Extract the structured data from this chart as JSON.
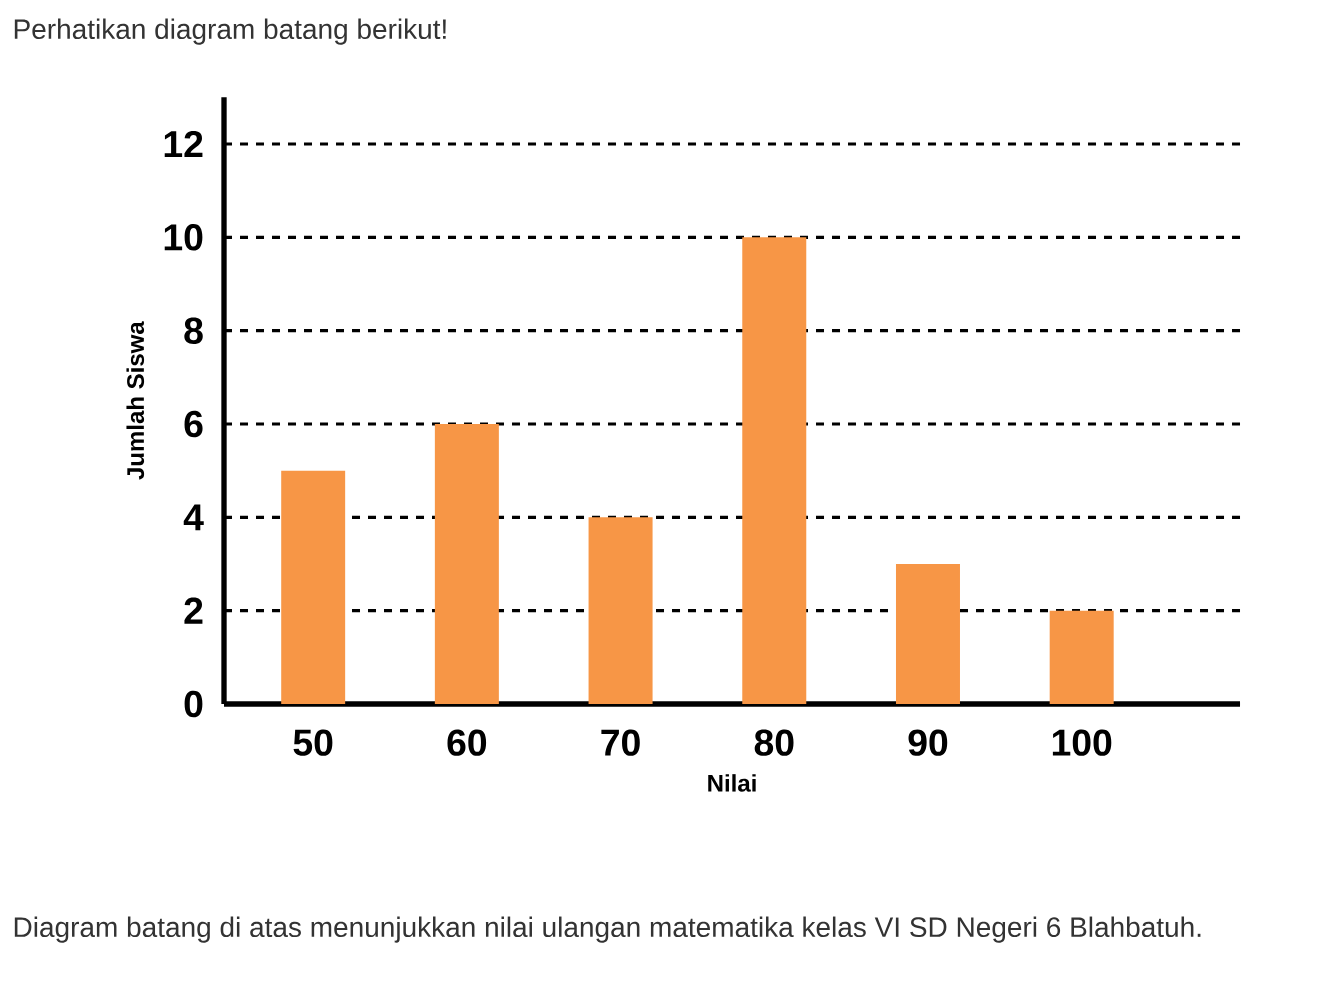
{
  "chart_data": {
    "type": "bar",
    "title": "Perhatikan diagram batang berikut!",
    "xlabel": "Nilai",
    "ylabel": "Jumlah Siswa",
    "categories": [
      "50",
      "60",
      "70",
      "80",
      "90",
      "100"
    ],
    "values": [
      5,
      6,
      4,
      10,
      3,
      2
    ],
    "color": "#f79646",
    "ylim": [
      0,
      13
    ],
    "yticks": [
      0,
      2,
      4,
      6,
      8,
      10,
      12
    ],
    "grid": "y",
    "annotations": [
      "Diagram batang di atas menunjukkan nilai ulangan matematika kelas VI SD Negeri 6 Blahbatuh."
    ]
  }
}
